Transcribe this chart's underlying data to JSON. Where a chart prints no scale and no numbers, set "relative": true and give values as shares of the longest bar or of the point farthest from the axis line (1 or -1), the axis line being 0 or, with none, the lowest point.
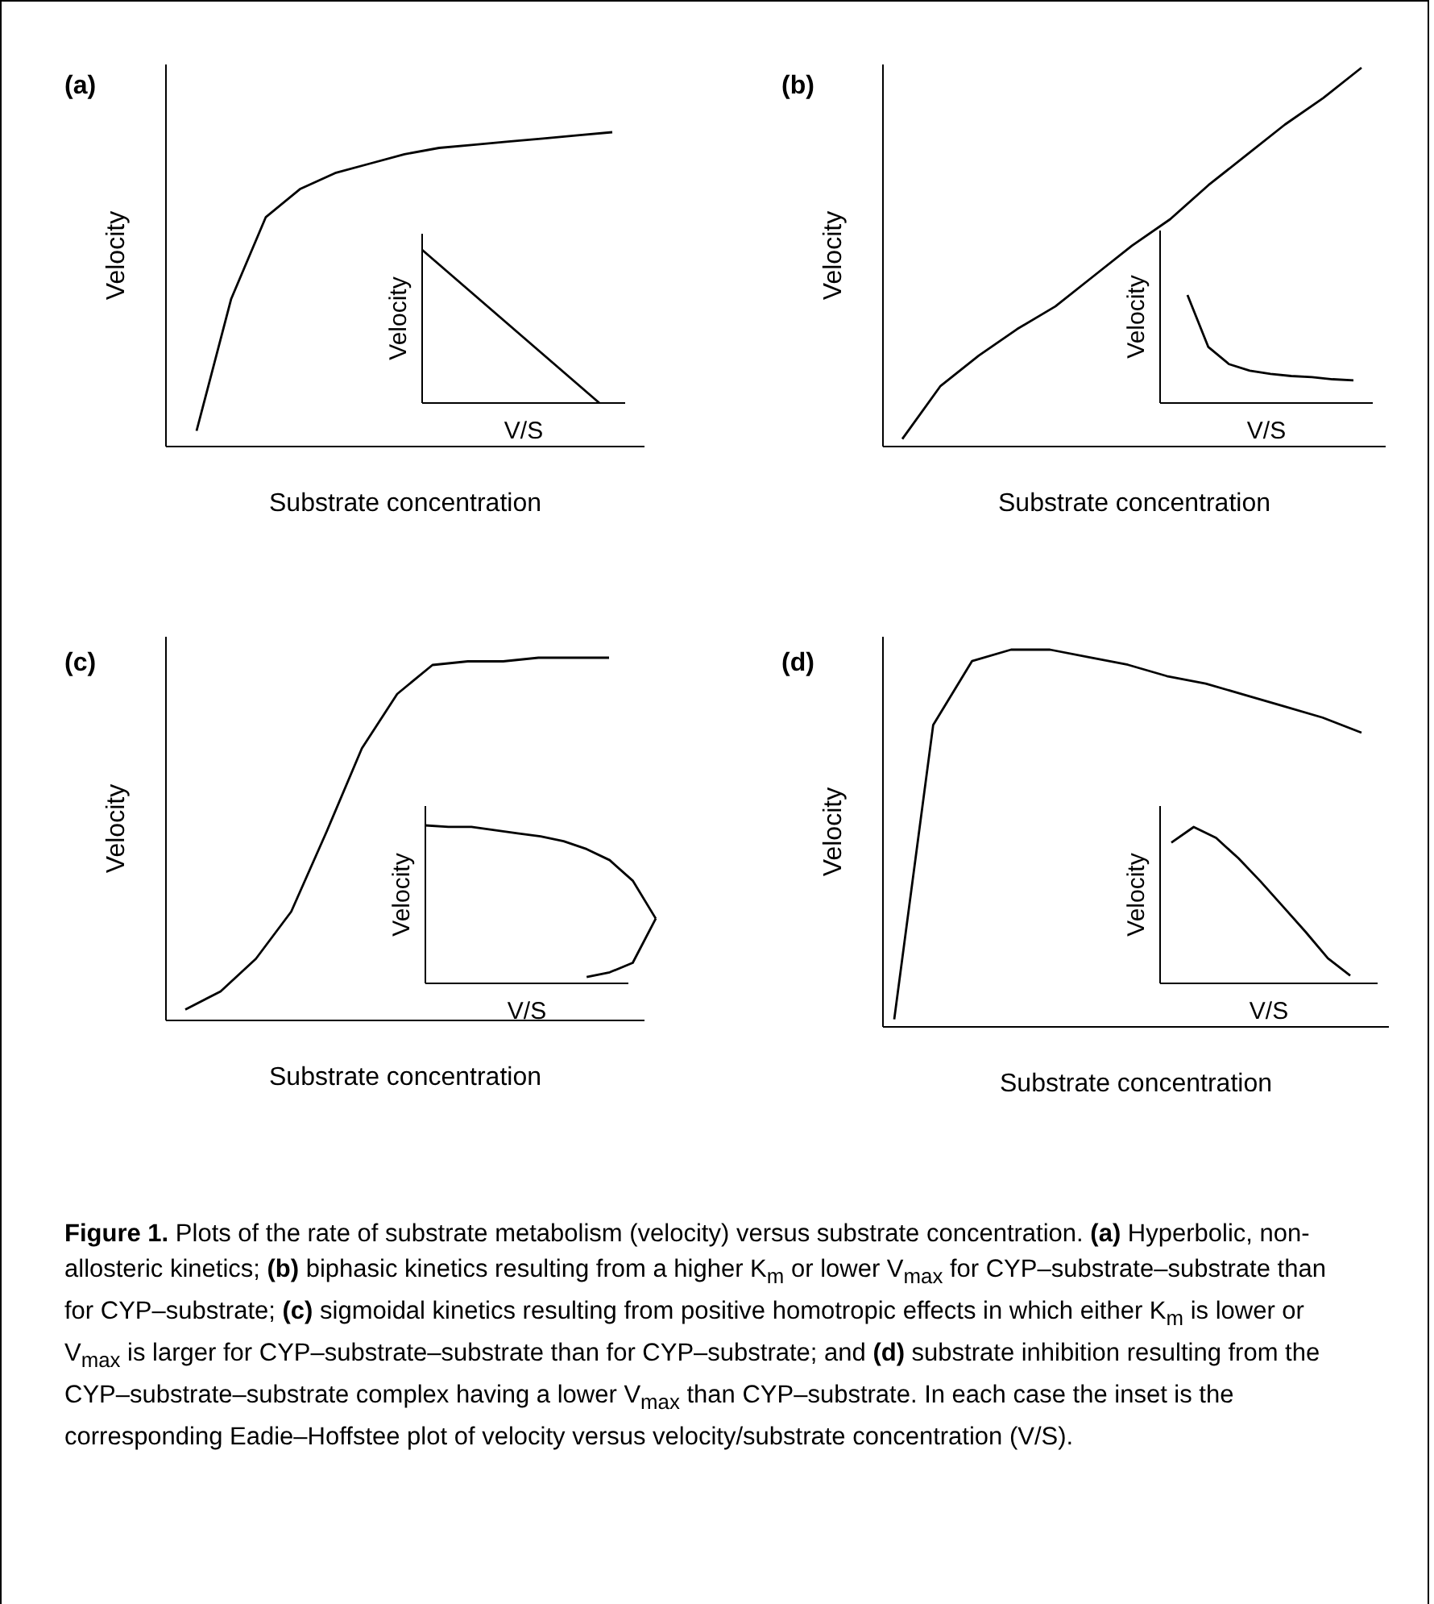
{
  "chart_data": [
    {
      "type": "line",
      "title": "(a)",
      "xlabel": "Substrate concentration",
      "ylabel": "Velocity",
      "relative": true,
      "categories": [
        null,
        null,
        null,
        null,
        null,
        null,
        null,
        null,
        null,
        null,
        null,
        null,
        null
      ],
      "series": [
        {
          "color": "#000000",
          "values": [
            0.05,
            0.47,
            0.73,
            0.82,
            0.87,
            0.9,
            0.93,
            0.95,
            0.96,
            0.97,
            0.98,
            0.99,
            1
          ]
        }
      ]
    },
    {
      "type": "line",
      "xlabel": "V/S",
      "ylabel": "Velocity",
      "relative": true,
      "categories": [
        null,
        null,
        null,
        null,
        null
      ],
      "series": [
        {
          "color": "#000000",
          "values": [
            1,
            0.75,
            0.5,
            0.25,
            0
          ]
        }
      ]
    },
    {
      "type": "line",
      "title": "(b)",
      "xlabel": "Substrate concentration",
      "ylabel": "Velocity",
      "relative": true,
      "categories": [
        null,
        null,
        null,
        null,
        null,
        null,
        null,
        null,
        null,
        null,
        null,
        null,
        null
      ],
      "series": [
        {
          "color": "#000000",
          "values": [
            0.02,
            0.16,
            0.24,
            0.31,
            0.37,
            0.45,
            0.53,
            0.6,
            0.69,
            0.77,
            0.85,
            0.92,
            1
          ]
        }
      ]
    },
    {
      "type": "line",
      "xlabel": "V/S",
      "ylabel": "Velocity",
      "relative": true,
      "categories": [
        null,
        null,
        null,
        null,
        null,
        null,
        null,
        null,
        null
      ],
      "series": [
        {
          "color": "#000000",
          "values": [
            1,
            0.52,
            0.36,
            0.3,
            0.27,
            0.25,
            0.24,
            0.22,
            0.21
          ]
        }
      ]
    },
    {
      "type": "line",
      "title": "(c)",
      "xlabel": "Substrate concentration",
      "ylabel": "Velocity",
      "relative": true,
      "categories": [
        null,
        null,
        null,
        null,
        null,
        null,
        null,
        null,
        null,
        null,
        null,
        null,
        null
      ],
      "series": [
        {
          "color": "#000000",
          "values": [
            0.03,
            0.08,
            0.17,
            0.3,
            0.52,
            0.75,
            0.9,
            0.98,
            0.99,
            0.99,
            1,
            1,
            1
          ]
        }
      ]
    },
    {
      "type": "line",
      "xlabel": "V/S",
      "ylabel": "Velocity",
      "relative": true,
      "categories": [
        null,
        null,
        null,
        null,
        null,
        null,
        null,
        null,
        null,
        null,
        null
      ],
      "series": [
        {
          "color": "#000000",
          "values": [
            1,
            0.99,
            0.99,
            0.97,
            0.95,
            0.93,
            0.9,
            0.85,
            0.78,
            0.65,
            0.41
          ]
        },
        {
          "color": "#000000",
          "values": [
            null,
            null,
            null,
            null,
            null,
            null,
            null,
            0.04,
            0.07,
            0.13,
            0.41
          ]
        }
      ]
    },
    {
      "type": "line",
      "title": "(d)",
      "xlabel": "Substrate concentration",
      "ylabel": "Velocity",
      "relative": true,
      "categories": [
        null,
        null,
        null,
        null,
        null,
        null,
        null,
        null,
        null,
        null,
        null,
        null,
        null
      ],
      "series": [
        {
          "color": "#000000",
          "values": [
            0.02,
            0.8,
            0.97,
            1,
            1,
            0.98,
            0.96,
            0.93,
            0.91,
            0.88,
            0.85,
            0.82,
            0.78
          ]
        }
      ]
    },
    {
      "type": "line",
      "xlabel": "V/S",
      "ylabel": "Velocity",
      "relative": true,
      "categories": [
        null,
        null,
        null,
        null,
        null,
        null,
        null,
        null,
        null
      ],
      "series": [
        {
          "color": "#000000",
          "values": [
            0.9,
            1,
            0.93,
            0.8,
            0.65,
            0.49,
            0.33,
            0.16,
            0.05
          ]
        }
      ]
    },
    {
      "type": "other",
      "title": "Figure 1.",
      "annotations": [
        "Plots of the rate of substrate metabolism (velocity) versus substrate concentration.",
        "(a) Hyperbolic, non-allosteric kinetics;",
        "(b) biphasic kinetics resulting from a higher K$_{m}$ or lower V$_{max}$ for CYP–substrate–substrate than for CYP–substrate;",
        "(c) sigmoidal kinetics resulting from positive homotropic effects in which either K$_{m}$ is lower or V$_{max}$ is larger for CYP–substrate–substrate than for CYP–substrate; and",
        "(d) substrate inhibition resulting from the CYP–substrate–substrate complex having a lower V$_{max}$ than CYP–substrate.",
        "In each case the inset is the corresponding Eadie–Hoffstee plot of velocity versus velocity/substrate concentration (V/S)."
      ]
    }
  ]
}
